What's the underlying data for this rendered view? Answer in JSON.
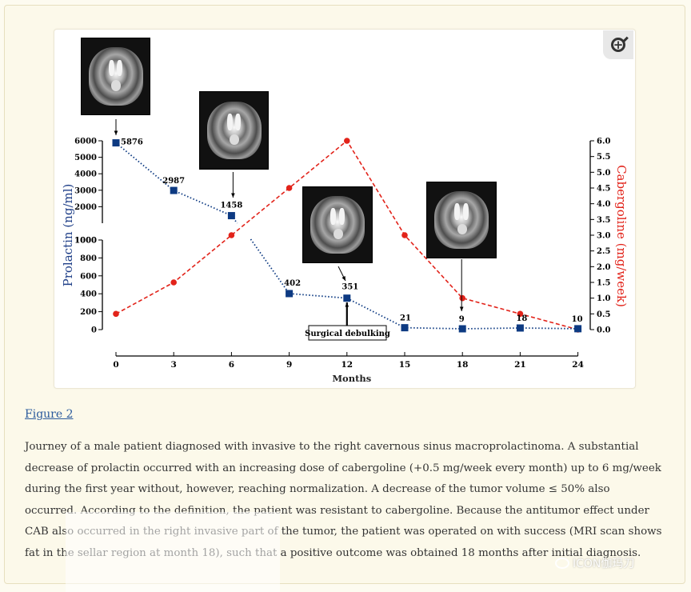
{
  "figure_link": "Figure 2",
  "caption": "Journey of a male patient diagnosed with invasive to the right cavernous sinus macroprolactinoma. A substantial decrease of prolactin occurred with an increasing dose of cabergoline (+0.5 mg/week every month) up to 6 mg/week during the first year without, however, reaching normalization. A decrease of the tumor volume ≤ 50% also occurred. According to the definition, the patient was resistant to cabergoline. Because the antitumor effect under CAB also occurred in the right invasive part of the tumor, the patient was operated on with success (MRI scan shows fat in the sellar region at month 18), such that a positive outcome was obtained 18 months after initial diagnosis.",
  "watermark": "ICON伽玛刀",
  "zoom_icon": "zoom-in-icon",
  "chart_data": {
    "type": "line",
    "xlabel": "Months",
    "ylabel_left": "Prolactin (ng/ml)",
    "ylabel_right": "Cabergoline (mg/week)",
    "x_ticks": [
      0,
      3,
      6,
      9,
      12,
      15,
      18,
      21,
      24
    ],
    "y_left_ticks_upper": [
      1000,
      2000,
      3000,
      4000,
      5000,
      6000
    ],
    "y_left_ticks_lower": [
      0,
      200,
      400,
      600,
      800,
      1000
    ],
    "y_right_ticks": [
      "0.0",
      "0.5",
      "1.0",
      "1.5",
      "2.0",
      "2.5",
      "3.0",
      "3.5",
      "4.0",
      "4.5",
      "5.0",
      "5.5",
      "6.0"
    ],
    "y_left_scale": "broken: 0–1000 lower segment, 1000–6000 upper segment",
    "y_right_range": [
      0,
      6
    ],
    "grid": false,
    "series": [
      {
        "name": "Prolactin",
        "color": "#0d3a82",
        "marker": "square",
        "style": "dotted",
        "x": [
          0,
          3,
          6,
          9,
          12,
          15,
          18,
          21,
          24
        ],
        "y": [
          5876,
          2987,
          1458,
          402,
          351,
          21,
          9,
          18,
          10
        ],
        "labels": [
          "5876",
          "2987",
          "1458",
          "402",
          "351",
          "21",
          "9",
          "18",
          "10"
        ]
      },
      {
        "name": "Cabergoline",
        "color": "#e2231a",
        "marker": "circle",
        "style": "dashed",
        "x": [
          0,
          3,
          6,
          9,
          12,
          15,
          18,
          21,
          24
        ],
        "y": [
          0.5,
          1.5,
          3.0,
          4.5,
          6.0,
          3.0,
          1.0,
          0.5,
          0.0
        ]
      }
    ],
    "annotations": [
      {
        "text": "Surgical debulking",
        "x": 12
      }
    ],
    "mri_images": [
      {
        "name": "mri-month-0"
      },
      {
        "name": "mri-month-6"
      },
      {
        "name": "mri-month-12"
      },
      {
        "name": "mri-month-18"
      }
    ]
  }
}
